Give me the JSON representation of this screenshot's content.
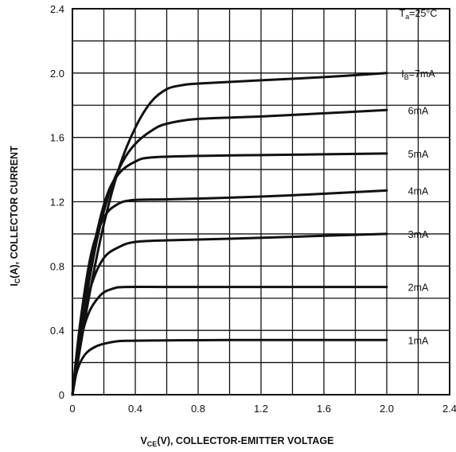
{
  "chart_data": {
    "type": "line",
    "xlabel": "VCE(V), COLLECTOR-EMITTER VOLTAGE",
    "xlabel_main": "V",
    "xlabel_sub": "CE",
    "xlabel_rest": "(V), COLLECTOR-EMITTER VOLTAGE",
    "ylabel": "IC(A), COLLECTOR CURRENT",
    "ylabel_main": "I",
    "ylabel_sub": "C",
    "ylabel_rest": "(A), COLLECTOR CURRENT",
    "xlim": [
      0,
      2.4
    ],
    "ylim": [
      0,
      2.4
    ],
    "x_ticks": [
      "0",
      "0.4",
      "0.8",
      "1.2",
      "1.6",
      "2.0",
      "2.4"
    ],
    "y_ticks": [
      "0",
      "0.4",
      "0.8",
      "1.2",
      "1.6",
      "2.0",
      "2.4"
    ],
    "grid": true,
    "annotation": {
      "main": "T",
      "sub": "a",
      "rest": "=25°C",
      "text": "Ta=25°C",
      "position": "top-right"
    },
    "series": [
      {
        "name": "IB=7mA",
        "label_main": "I",
        "label_sub": "B",
        "label_rest": "=7mA",
        "points": [
          [
            0,
            0
          ],
          [
            0.1,
            0.58
          ],
          [
            0.2,
            1.06
          ],
          [
            0.3,
            1.42
          ],
          [
            0.4,
            1.66
          ],
          [
            0.5,
            1.82
          ],
          [
            0.6,
            1.9
          ],
          [
            0.7,
            1.925
          ],
          [
            0.8,
            1.935
          ],
          [
            1.2,
            1.955
          ],
          [
            1.6,
            1.975
          ],
          [
            2.0,
            2.0
          ]
        ]
      },
      {
        "name": "6mA",
        "points": [
          [
            0,
            0
          ],
          [
            0.08,
            0.55
          ],
          [
            0.16,
            0.98
          ],
          [
            0.24,
            1.27
          ],
          [
            0.32,
            1.45
          ],
          [
            0.4,
            1.56
          ],
          [
            0.5,
            1.64
          ],
          [
            0.6,
            1.685
          ],
          [
            0.8,
            1.715
          ],
          [
            1.2,
            1.73
          ],
          [
            1.6,
            1.75
          ],
          [
            2.0,
            1.77
          ]
        ]
      },
      {
        "name": "5mA",
        "points": [
          [
            0,
            0
          ],
          [
            0.06,
            0.5
          ],
          [
            0.14,
            0.94
          ],
          [
            0.22,
            1.24
          ],
          [
            0.3,
            1.38
          ],
          [
            0.4,
            1.45
          ],
          [
            0.5,
            1.475
          ],
          [
            0.8,
            1.485
          ],
          [
            1.2,
            1.49
          ],
          [
            1.6,
            1.495
          ],
          [
            2.0,
            1.5
          ]
        ]
      },
      {
        "name": "4mA",
        "points": [
          [
            0,
            0
          ],
          [
            0.05,
            0.45
          ],
          [
            0.12,
            0.88
          ],
          [
            0.2,
            1.1
          ],
          [
            0.28,
            1.18
          ],
          [
            0.38,
            1.21
          ],
          [
            0.6,
            1.215
          ],
          [
            1.0,
            1.225
          ],
          [
            1.4,
            1.24
          ],
          [
            2.0,
            1.27
          ]
        ]
      },
      {
        "name": "3mA",
        "points": [
          [
            0,
            0
          ],
          [
            0.05,
            0.38
          ],
          [
            0.12,
            0.68
          ],
          [
            0.2,
            0.85
          ],
          [
            0.3,
            0.92
          ],
          [
            0.4,
            0.95
          ],
          [
            0.6,
            0.96
          ],
          [
            1.0,
            0.97
          ],
          [
            1.5,
            0.985
          ],
          [
            2.0,
            1.0
          ]
        ]
      },
      {
        "name": "2mA",
        "points": [
          [
            0,
            0
          ],
          [
            0.04,
            0.28
          ],
          [
            0.1,
            0.5
          ],
          [
            0.18,
            0.62
          ],
          [
            0.26,
            0.66
          ],
          [
            0.34,
            0.67
          ],
          [
            0.6,
            0.67
          ],
          [
            1.0,
            0.67
          ],
          [
            2.0,
            0.67
          ]
        ]
      },
      {
        "name": "1mA",
        "points": [
          [
            0,
            0
          ],
          [
            0.03,
            0.15
          ],
          [
            0.08,
            0.25
          ],
          [
            0.15,
            0.3
          ],
          [
            0.24,
            0.325
          ],
          [
            0.34,
            0.335
          ],
          [
            0.6,
            0.338
          ],
          [
            1.0,
            0.34
          ],
          [
            2.0,
            0.34
          ]
        ]
      }
    ]
  }
}
